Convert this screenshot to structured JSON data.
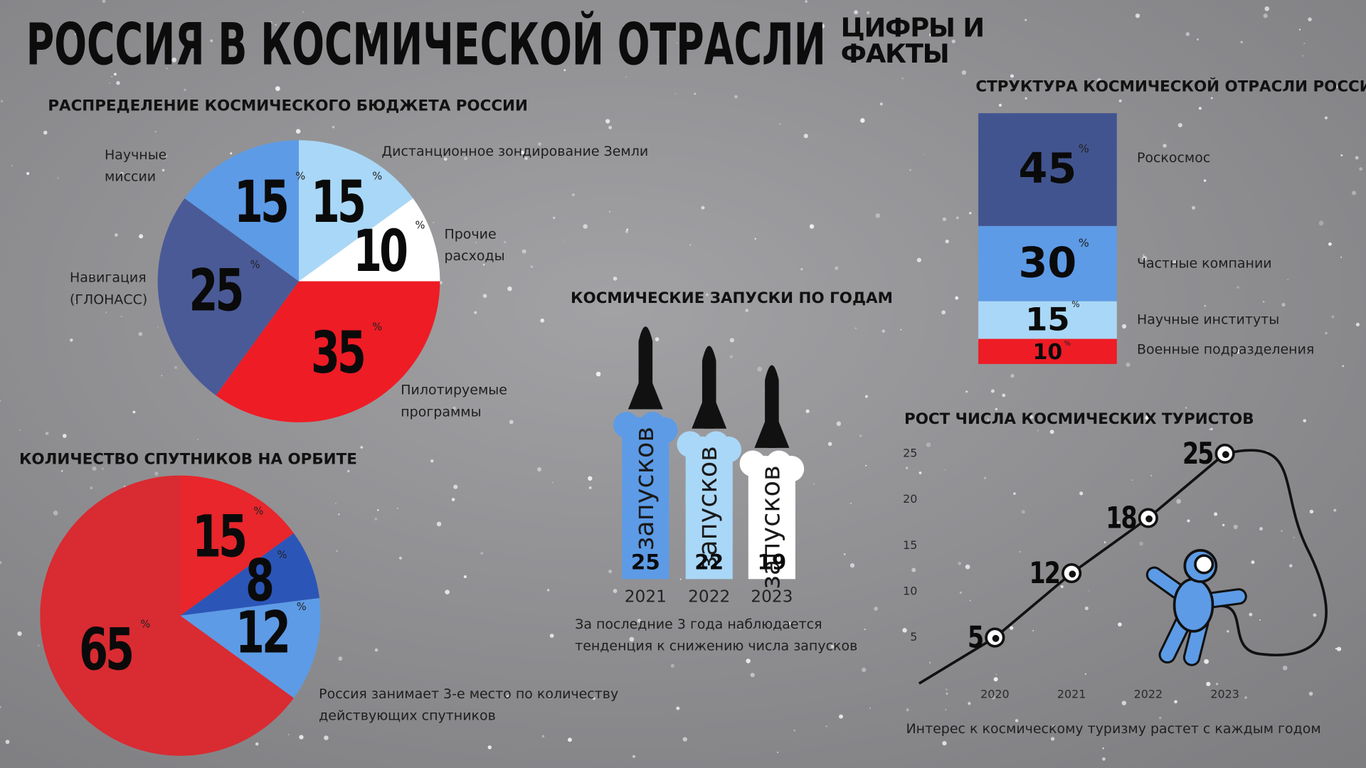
{
  "header": {
    "title": "РОССИЯ В КОСМИЧЕСКОЙ ОТРАСЛИ",
    "subtitle": "ЦИФРЫ И ФАКТЫ"
  },
  "chart_data": [
    {
      "type": "pie",
      "title": "РАСПРЕДЕЛЕНИЕ КОСМИЧЕСКОГО БЮДЖЕТА РОССИИ",
      "categories": [
        "Дистанционное зондирование Земли",
        "Прочие расходы",
        "Пилотируемые программы",
        "Навигация (ГЛОНАСС)",
        "Научные миссии"
      ],
      "values": [
        15,
        10,
        35,
        25,
        15
      ],
      "unit": "%",
      "colors": [
        "#a9d7f7",
        "#ffffff",
        "#ee1c25",
        "#4a5a96",
        "#5d9be6"
      ]
    },
    {
      "type": "pie",
      "title": "КОЛИЧЕСТВО СПУТНИКОВ НА ОРБИТЕ",
      "values": [
        15,
        8,
        12,
        65
      ],
      "unit": "%",
      "colors": [
        "#e8262b",
        "#2c55b8",
        "#5d9be6",
        "#d92b32"
      ],
      "annotation": "Россия занимает 3-е место по количеству действующих спутников"
    },
    {
      "type": "bar",
      "title": "КОСМИЧЕСКИЕ ЗАПУСКИ ПО ГОДАМ",
      "categories": [
        "2021",
        "2022",
        "2023"
      ],
      "values": [
        25,
        22,
        19
      ],
      "bar_text": "запусков",
      "colors": [
        "#5d9be6",
        "#a9d7f7",
        "#ffffff"
      ],
      "annotation": "За последние 3 года наблюдается тенденция к снижению числа запусков"
    },
    {
      "type": "stacked_bar",
      "title": "СТРУКТУРА КОСМИЧЕСКОЙ ОТРАСЛИ РОССИИ",
      "unit": "%",
      "series": [
        {
          "name": "Роскосмос",
          "color": "#42548f",
          "values": [
            45
          ]
        },
        {
          "name": "Частные компании",
          "color": "#5d9be6",
          "values": [
            30
          ]
        },
        {
          "name": "Научные институты",
          "color": "#a9d7f7",
          "values": [
            15
          ]
        },
        {
          "name": "Военные подразделения",
          "color": "#ee1c25",
          "values": [
            10
          ]
        }
      ]
    },
    {
      "type": "line",
      "title": "РОСТ ЧИСЛА КОСМИЧЕСКИХ ТУРИСТОВ",
      "categories": [
        "2020",
        "2021",
        "2022",
        "2023"
      ],
      "values": [
        5,
        12,
        18,
        25
      ],
      "color": "#111111",
      "ylim": [
        0,
        25
      ],
      "yticks": [
        5,
        10,
        15,
        20,
        25
      ],
      "annotation": "Интерес к космическому туризму растет с каждым годом"
    }
  ]
}
